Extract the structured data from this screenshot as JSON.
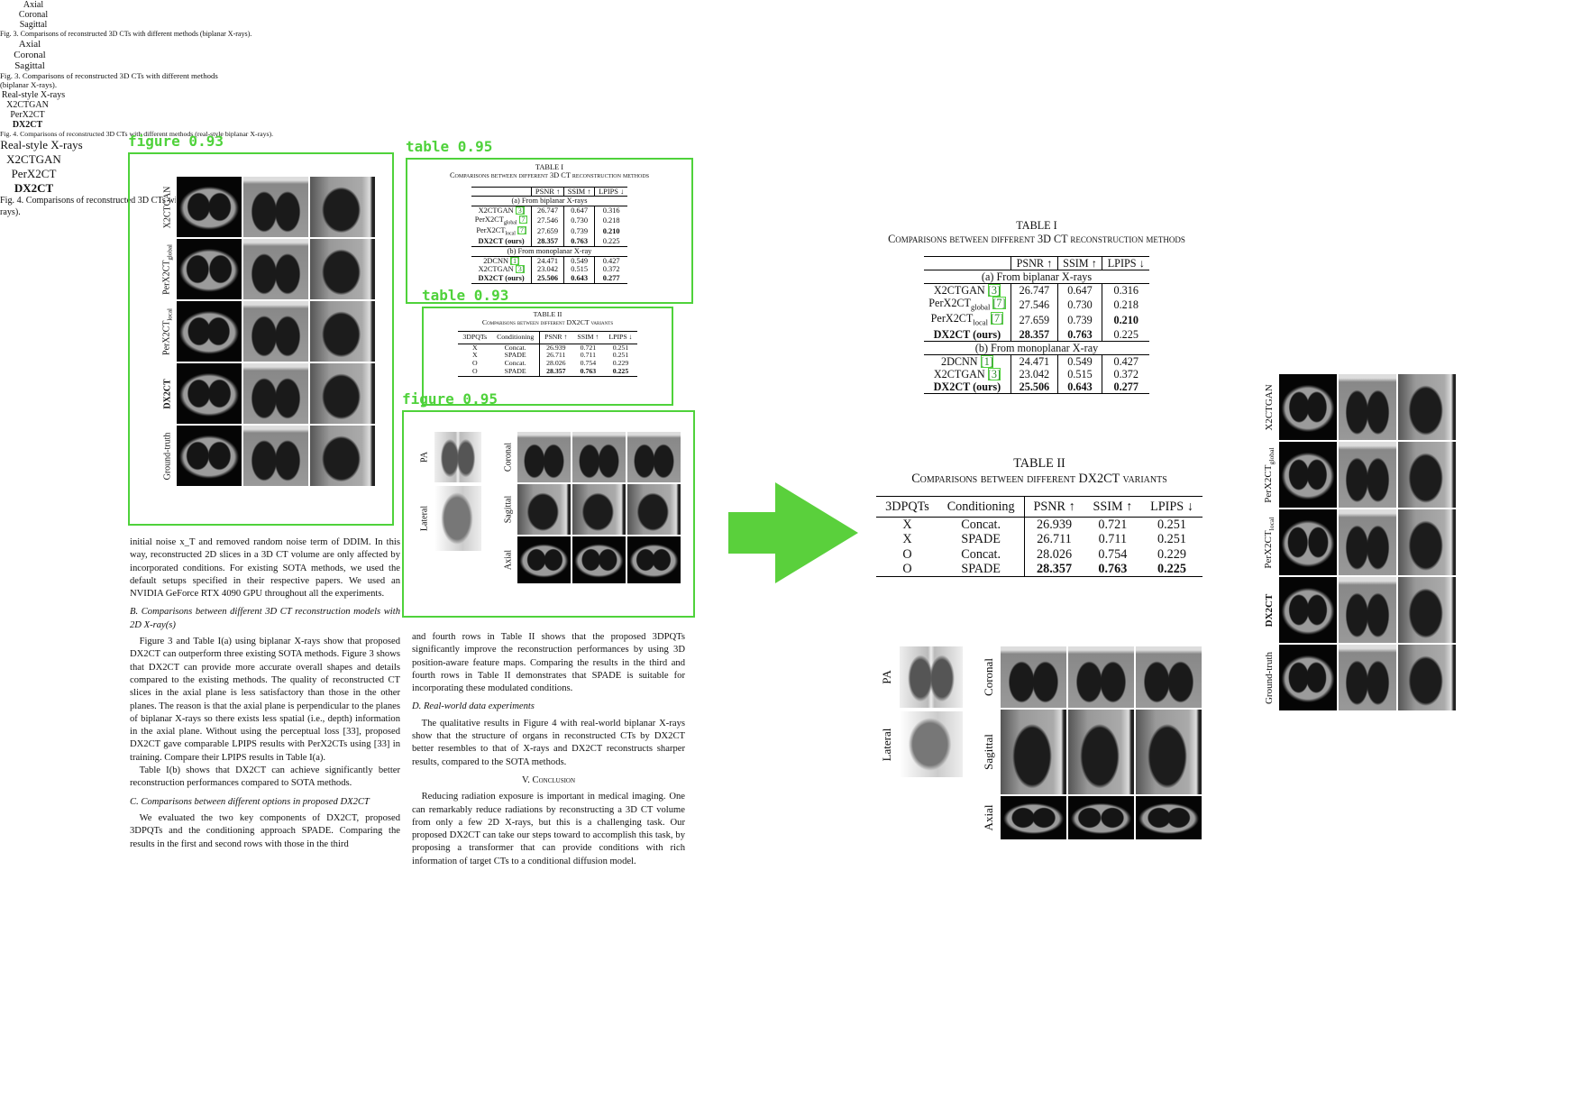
{
  "detections": [
    {
      "label": "figure 0.93"
    },
    {
      "label": "table 0.95"
    },
    {
      "label": "table 0.93"
    },
    {
      "label": "figure 0.95"
    }
  ],
  "figure_3": {
    "columns": [
      "Axial",
      "Coronal",
      "Sagittal"
    ],
    "rows": [
      {
        "name": "X2CTGAN"
      },
      {
        "name": "PerX2CT",
        "sub": "global"
      },
      {
        "name": "PerX2CT",
        "sub": "local"
      },
      {
        "name": "DX2CT"
      },
      {
        "name": "Ground-truth"
      }
    ],
    "caption": "Fig. 3. Comparisons of reconstructed 3D CTs with different methods (biplanar X-rays)."
  },
  "table_1": {
    "label": "TABLE I",
    "caption": "Comparisons between different 3D CT reconstruction methods",
    "headers": [
      "PSNR ↑",
      "SSIM ↑",
      "LPIPS ↓"
    ],
    "sections": [
      {
        "title": "(a) From biplanar X-rays",
        "rows": [
          {
            "name": "X2CTGAN",
            "cite": "[3]",
            "values": [
              "26.747",
              "0.647",
              "0.316"
            ]
          },
          {
            "name": "PerX2CT",
            "sub": "global",
            "cite": "[7]",
            "values": [
              "27.546",
              "0.730",
              "0.218"
            ]
          },
          {
            "name": "PerX2CT",
            "sub": "local",
            "cite": "[7]",
            "values": [
              "27.659",
              "0.739",
              "0.210"
            ],
            "bold": [
              3
            ]
          },
          {
            "name": "DX2CT (ours)",
            "values": [
              "28.357",
              "0.763",
              "0.225"
            ],
            "bold": [
              0,
              1,
              2
            ]
          }
        ]
      },
      {
        "title": "(b) From monoplanar X-ray",
        "rows": [
          {
            "name": "2DCNN",
            "cite": "[1]",
            "values": [
              "24.471",
              "0.549",
              "0.427"
            ]
          },
          {
            "name": "X2CTGAN",
            "cite": "[3]",
            "values": [
              "23.042",
              "0.515",
              "0.372"
            ]
          },
          {
            "name": "DX2CT (ours)",
            "values": [
              "25.506",
              "0.643",
              "0.277"
            ],
            "bold": [
              0,
              1,
              2,
              3
            ]
          }
        ]
      }
    ]
  },
  "table_2": {
    "label": "TABLE II",
    "caption": "Comparisons between different DX2CT variants",
    "headers": [
      "3DPQTs",
      "Conditioning",
      "PSNR ↑",
      "SSIM ↑",
      "LPIPS ↓"
    ],
    "rows": [
      {
        "cells": [
          "X",
          "Concat.",
          "26.939",
          "0.721",
          "0.251"
        ]
      },
      {
        "cells": [
          "X",
          "SPADE",
          "26.711",
          "0.711",
          "0.251"
        ]
      },
      {
        "cells": [
          "O",
          "Concat.",
          "28.026",
          "0.754",
          "0.229"
        ]
      },
      {
        "cells": [
          "O",
          "SPADE",
          "28.357",
          "0.763",
          "0.225"
        ],
        "bold": [
          2,
          3,
          4
        ]
      }
    ]
  },
  "figure_4": {
    "xray_header": "Real-style X-rays",
    "xray_rows": [
      "PA",
      "Lateral"
    ],
    "columns": [
      "X2CTGAN",
      "PerX2CT",
      "DX2CT"
    ],
    "rows": [
      "Coronal",
      "Sagittal",
      "Axial"
    ],
    "caption": "Fig. 4. Comparisons of reconstructed 3D CTs with different methods (real-style biplanar X-rays)."
  },
  "body": {
    "column_1": [
      {
        "kind": "p-cont",
        "text": "initial noise x_T and removed random noise term of DDIM. In this way, reconstructed 2D slices in a 3D CT volume are only affected by incorporated conditions. For existing SOTA methods, we used the default setups specified in their respective papers. We used an NVIDIA GeForce RTX 4090 GPU throughout all the experiments."
      },
      {
        "kind": "h",
        "text": "B. Comparisons between different 3D CT reconstruction models with 2D X-ray(s)"
      },
      {
        "kind": "p",
        "text": "Figure 3 and Table I(a) using biplanar X-rays show that proposed DX2CT can outperform three existing SOTA methods. Figure 3 shows that DX2CT can provide more accurate overall shapes and details compared to the existing methods. The quality of reconstructed CT slices in the axial plane is less satisfactory than those in the other planes. The reason is that the axial plane is perpendicular to the planes of biplanar X-rays so there exists less spatial (i.e., depth) information in the axial plane. Without using the perceptual loss [33], proposed DX2CT gave comparable LPIPS results with PerX2CTs using [33] in training. Compare their LPIPS results in Table I(a)."
      },
      {
        "kind": "p",
        "text": "Table I(b) shows that DX2CT can achieve significantly better reconstruction performances compared to SOTA methods."
      },
      {
        "kind": "h",
        "text": "C. Comparisons between different options in proposed DX2CT"
      },
      {
        "kind": "p",
        "text": "We evaluated the two key components of DX2CT, proposed 3DPQTs and the conditioning approach SPADE. Comparing the results in the first and second rows with those in the third"
      }
    ],
    "column_2": [
      {
        "kind": "p-cont",
        "text": "and fourth rows in Table II shows that the proposed 3DPQTs significantly improve the reconstruction performances by using 3D position-aware feature maps. Comparing the results in the third and fourth rows in Table II demonstrates that SPADE is suitable for incorporating these modulated conditions."
      },
      {
        "kind": "h",
        "text": "D. Real-world data experiments"
      },
      {
        "kind": "p",
        "text": "The qualitative results in Figure 4 with real-world biplanar X-rays show that the structure of organs in reconstructed CTs by DX2CT better resembles to that of X-rays and DX2CT reconstructs sharper results, compared to the SOTA methods."
      },
      {
        "kind": "section",
        "text": "V. Conclusion"
      },
      {
        "kind": "p",
        "text": "Reducing radiation exposure is important in medical imaging. One can remarkably reduce radiations by reconstructing a 3D CT volume from only a few 2D X-rays, but this is a challenging task. Our proposed DX2CT can take our steps toward to accomplish this task, by proposing a transformer that can provide conditions with rich information of target CTs to a conditional diffusion model."
      }
    ]
  }
}
